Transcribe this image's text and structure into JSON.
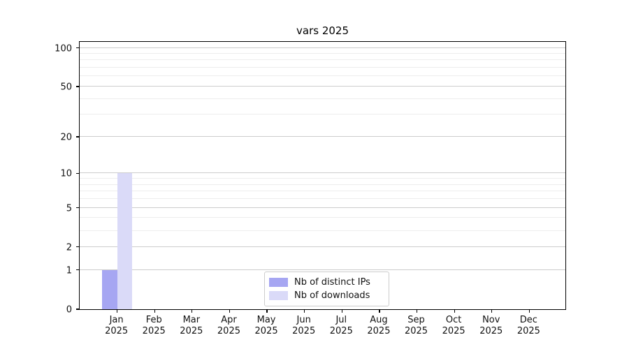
{
  "chart_data": {
    "type": "bar",
    "title": "vars 2025",
    "categories": [
      "Jan",
      "Feb",
      "Mar",
      "Apr",
      "May",
      "Jun",
      "Jul",
      "Aug",
      "Sep",
      "Oct",
      "Nov",
      "Dec"
    ],
    "year_label": "2025",
    "series": [
      {
        "name": "Nb of distinct IPs",
        "color": "#a6a6f2",
        "values": [
          1,
          0,
          0,
          0,
          0,
          0,
          0,
          0,
          0,
          0,
          0,
          0
        ]
      },
      {
        "name": "Nb of downloads",
        "color": "#dadaf8",
        "values": [
          10,
          0,
          0,
          0,
          0,
          0,
          0,
          0,
          0,
          0,
          0,
          0
        ]
      }
    ],
    "yticks": [
      0,
      1,
      2,
      5,
      10,
      20,
      50,
      100
    ],
    "minor_yticks": [
      3,
      4,
      6,
      7,
      8,
      9,
      30,
      40,
      60,
      70,
      80,
      90
    ],
    "scale": "log10(1+v)",
    "ylim": [
      0,
      114
    ],
    "grid": "on",
    "legend_position": "lower center",
    "xlabel": "",
    "ylabel": ""
  },
  "style": {
    "grid_major_color": "#cccccc",
    "grid_minor_color": "#ededed",
    "spine_color": "#000000",
    "text_color": "#111111",
    "background_color": "#ffffff"
  }
}
